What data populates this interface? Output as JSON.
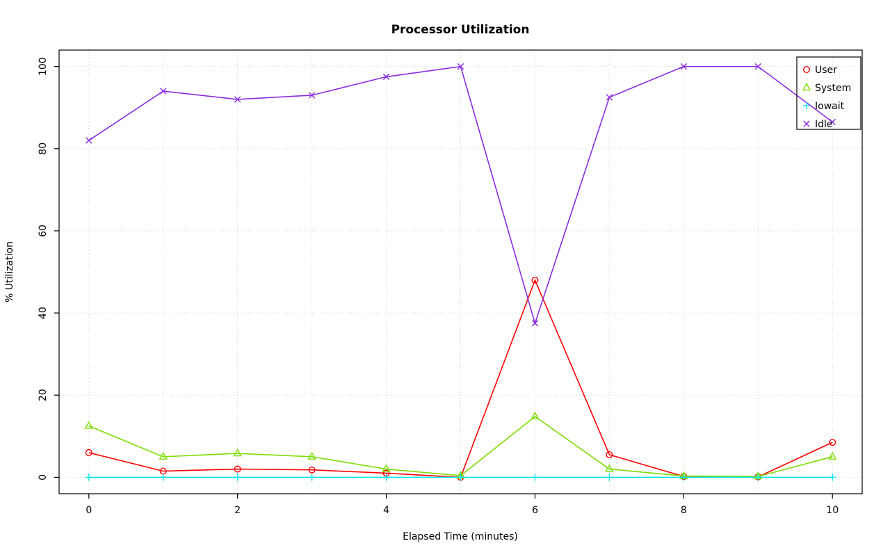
{
  "chart_data": {
    "type": "line",
    "title": "Processor Utilization",
    "xlabel": "Elapsed Time (minutes)",
    "ylabel": "% Utilization",
    "x": [
      0,
      1,
      2,
      3,
      4,
      5,
      6,
      7,
      8,
      9,
      10
    ],
    "x_ticks": [
      0,
      2,
      4,
      6,
      8,
      10
    ],
    "x_grid": [
      0,
      1,
      2,
      3,
      4,
      5,
      6,
      7,
      8,
      9,
      10
    ],
    "y_ticks": [
      0,
      20,
      40,
      60,
      80,
      100
    ],
    "xlim": [
      -0.4,
      10.4
    ],
    "ylim": [
      -4,
      104
    ],
    "grid": true,
    "grid_color": "#d3d3d3",
    "grid_style": "dotted",
    "legend_position": "top-right",
    "series": [
      {
        "name": "User",
        "color": "#ff0000",
        "marker": "circle",
        "values": [
          6,
          1.5,
          2,
          1.8,
          1,
          0,
          48,
          5.5,
          0.2,
          0.1,
          8.5
        ]
      },
      {
        "name": "System",
        "color": "#7cde00",
        "marker": "triangle",
        "values": [
          12.5,
          5,
          5.8,
          5,
          2,
          0.4,
          14.8,
          2,
          0.3,
          0.2,
          5
        ]
      },
      {
        "name": "Iowait",
        "color": "#00e5ee",
        "marker": "plus",
        "values": [
          0,
          0,
          0,
          0,
          0,
          0,
          0,
          0,
          0,
          0,
          0
        ]
      },
      {
        "name": "Idle",
        "color": "#8a2be2",
        "marker": "x",
        "values": [
          82,
          94,
          92,
          93,
          97.5,
          100,
          37.5,
          92.5,
          100,
          100,
          86.5
        ]
      }
    ]
  }
}
